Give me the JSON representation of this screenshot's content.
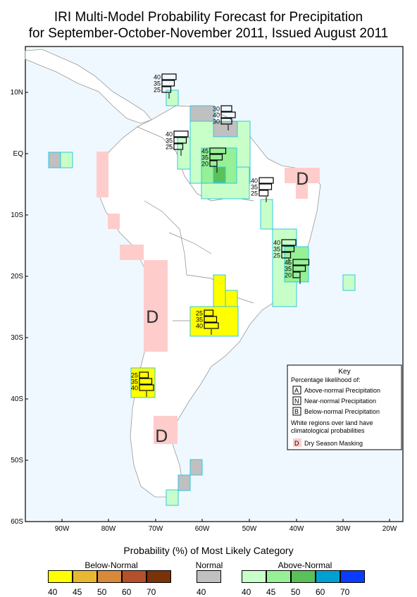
{
  "title_line1": "IRI Multi-Model Probability Forecast for Precipitation",
  "title_line2": "for September-October-November 2011, Issued August 2011",
  "lat_labels": [
    "10N",
    "EQ",
    "10S",
    "20S",
    "30S",
    "40S",
    "50S",
    "60S"
  ],
  "lon_labels": [
    "90W",
    "80W",
    "70W",
    "60W",
    "50W",
    "40W",
    "30W",
    "20W"
  ],
  "dry_mask_letter": "D",
  "bar_glyphs": [
    {
      "labels": [
        "40",
        "35",
        "25"
      ]
    },
    {
      "labels": [
        "30",
        "40",
        "30"
      ]
    },
    {
      "labels": [
        "40",
        "35",
        "25"
      ]
    },
    {
      "labels": [
        "45",
        "35",
        "20"
      ]
    },
    {
      "labels": [
        "40",
        "35",
        "25"
      ]
    },
    {
      "labels": [
        "40",
        "35",
        "25"
      ]
    },
    {
      "labels": [
        "45",
        "35",
        "20"
      ]
    },
    {
      "labels": [
        "25",
        "35",
        "40"
      ]
    },
    {
      "labels": [
        "25",
        "35",
        "40"
      ]
    }
  ],
  "key": {
    "title": "Key",
    "subtitle": "Percentage likelihood of:",
    "rows": [
      {
        "letter": "A",
        "text": "Above-normal Precipitation"
      },
      {
        "letter": "N",
        "text": "Near-normal Precipitation"
      },
      {
        "letter": "B",
        "text": "Below-normal Precipitation"
      }
    ],
    "note_line1": "White regions over land have",
    "note_line2": "climatological probabilities",
    "mask_letter": "D",
    "mask_text": "Dry Season Masking"
  },
  "legend": {
    "title": "Probability (%) of Most Likely Category",
    "below_label": "Below-Normal",
    "normal_label": "Normal",
    "above_label": "Above-Normal",
    "below_ticks": [
      "40",
      "45",
      "50",
      "60",
      "70"
    ],
    "normal_ticks": [
      "40"
    ],
    "above_ticks": [
      "40",
      "45",
      "50",
      "60",
      "70"
    ],
    "below_colors": [
      "#ffff00",
      "#e8b830",
      "#d88a3a",
      "#b4502a",
      "#7a3208"
    ],
    "normal_colors": [
      "#c0c0c0"
    ],
    "above_colors": [
      "#c8ffc8",
      "#96f096",
      "#5ac05a",
      "#00a0d2",
      "#0a3cff"
    ]
  },
  "colors": {
    "ocean": "#f0f8ff",
    "dry_mask": "#ffcccc",
    "above_light": "#c8ffc8",
    "above_mid": "#96f096",
    "above_dark": "#5ac05a",
    "below_yellow": "#ffff00",
    "normal_gray": "#c0c0c0",
    "cell_border": "#30c8e0"
  }
}
